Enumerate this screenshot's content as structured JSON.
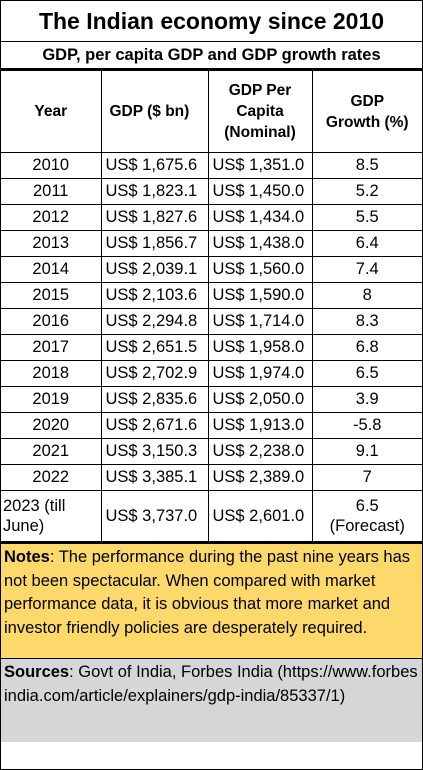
{
  "title": "The Indian economy since 2010",
  "subtitle": "GDP, per capita GDP and GDP growth rates",
  "headers": {
    "year": "Year",
    "gdp": "GDP ($ bn)",
    "per_capita": [
      "GDP Per",
      "Capita",
      "(Nominal)"
    ],
    "growth": [
      "GDP",
      "Growth (%)"
    ]
  },
  "rows": [
    {
      "year": "2010",
      "gdp": "US$ 1,675.6",
      "per_capita": "US$ 1,351.0",
      "growth": "8.5"
    },
    {
      "year": "2011",
      "gdp": "US$ 1,823.1",
      "per_capita": "US$ 1,450.0",
      "growth": "5.2"
    },
    {
      "year": "2012",
      "gdp": "US$ 1,827.6",
      "per_capita": "US$ 1,434.0",
      "growth": "5.5"
    },
    {
      "year": "2013",
      "gdp": "US$ 1,856.7",
      "per_capita": "US$ 1,438.0",
      "growth": "6.4"
    },
    {
      "year": "2014",
      "gdp": "US$ 2,039.1",
      "per_capita": "US$ 1,560.0",
      "growth": "7.4"
    },
    {
      "year": "2015",
      "gdp": "US$ 2,103.6",
      "per_capita": "US$ 1,590.0",
      "growth": "8"
    },
    {
      "year": "2016",
      "gdp": "US$ 2,294.8",
      "per_capita": "US$ 1,714.0",
      "growth": "8.3"
    },
    {
      "year": "2017",
      "gdp": "US$ 2,651.5",
      "per_capita": "US$ 1,958.0",
      "growth": "6.8"
    },
    {
      "year": "2018",
      "gdp": "US$ 2,702.9",
      "per_capita": "US$ 1,974.0",
      "growth": "6.5"
    },
    {
      "year": "2019",
      "gdp": "US$ 2,835.6",
      "per_capita": "US$ 2,050.0",
      "growth": "3.9"
    },
    {
      "year": "2020",
      "gdp": "US$ 2,671.6",
      "per_capita": "US$ 1,913.0",
      "growth": "-5.8"
    },
    {
      "year": "2021",
      "gdp": "US$ 3,150.3",
      "per_capita": "US$ 2,238.0",
      "growth": "9.1"
    },
    {
      "year": "2022",
      "gdp": "US$ 3,385.1",
      "per_capita": "US$ 2,389.0",
      "growth": "7"
    }
  ],
  "last_row": {
    "year": [
      "2023 (till",
      "June)"
    ],
    "gdp": "US$ 3,737.0",
    "per_capita": "US$ 2,601.0",
    "growth": [
      "6.5",
      "(Forecast)"
    ]
  },
  "notes": {
    "label": "Notes",
    "text": ": The performance during the past nine years has not been spectacular.  When compared with market performance data, it is obvious that more market and investor friendly policies are desperately required."
  },
  "sources": {
    "label": "Sources",
    "text": ": Govt of India, Forbes India (https://www.forbesindia.com/article/explainers/gdp-india/85337/1)"
  },
  "colors": {
    "notes_bg": "#fcd96a",
    "sources_bg": "#d6d6d6"
  }
}
